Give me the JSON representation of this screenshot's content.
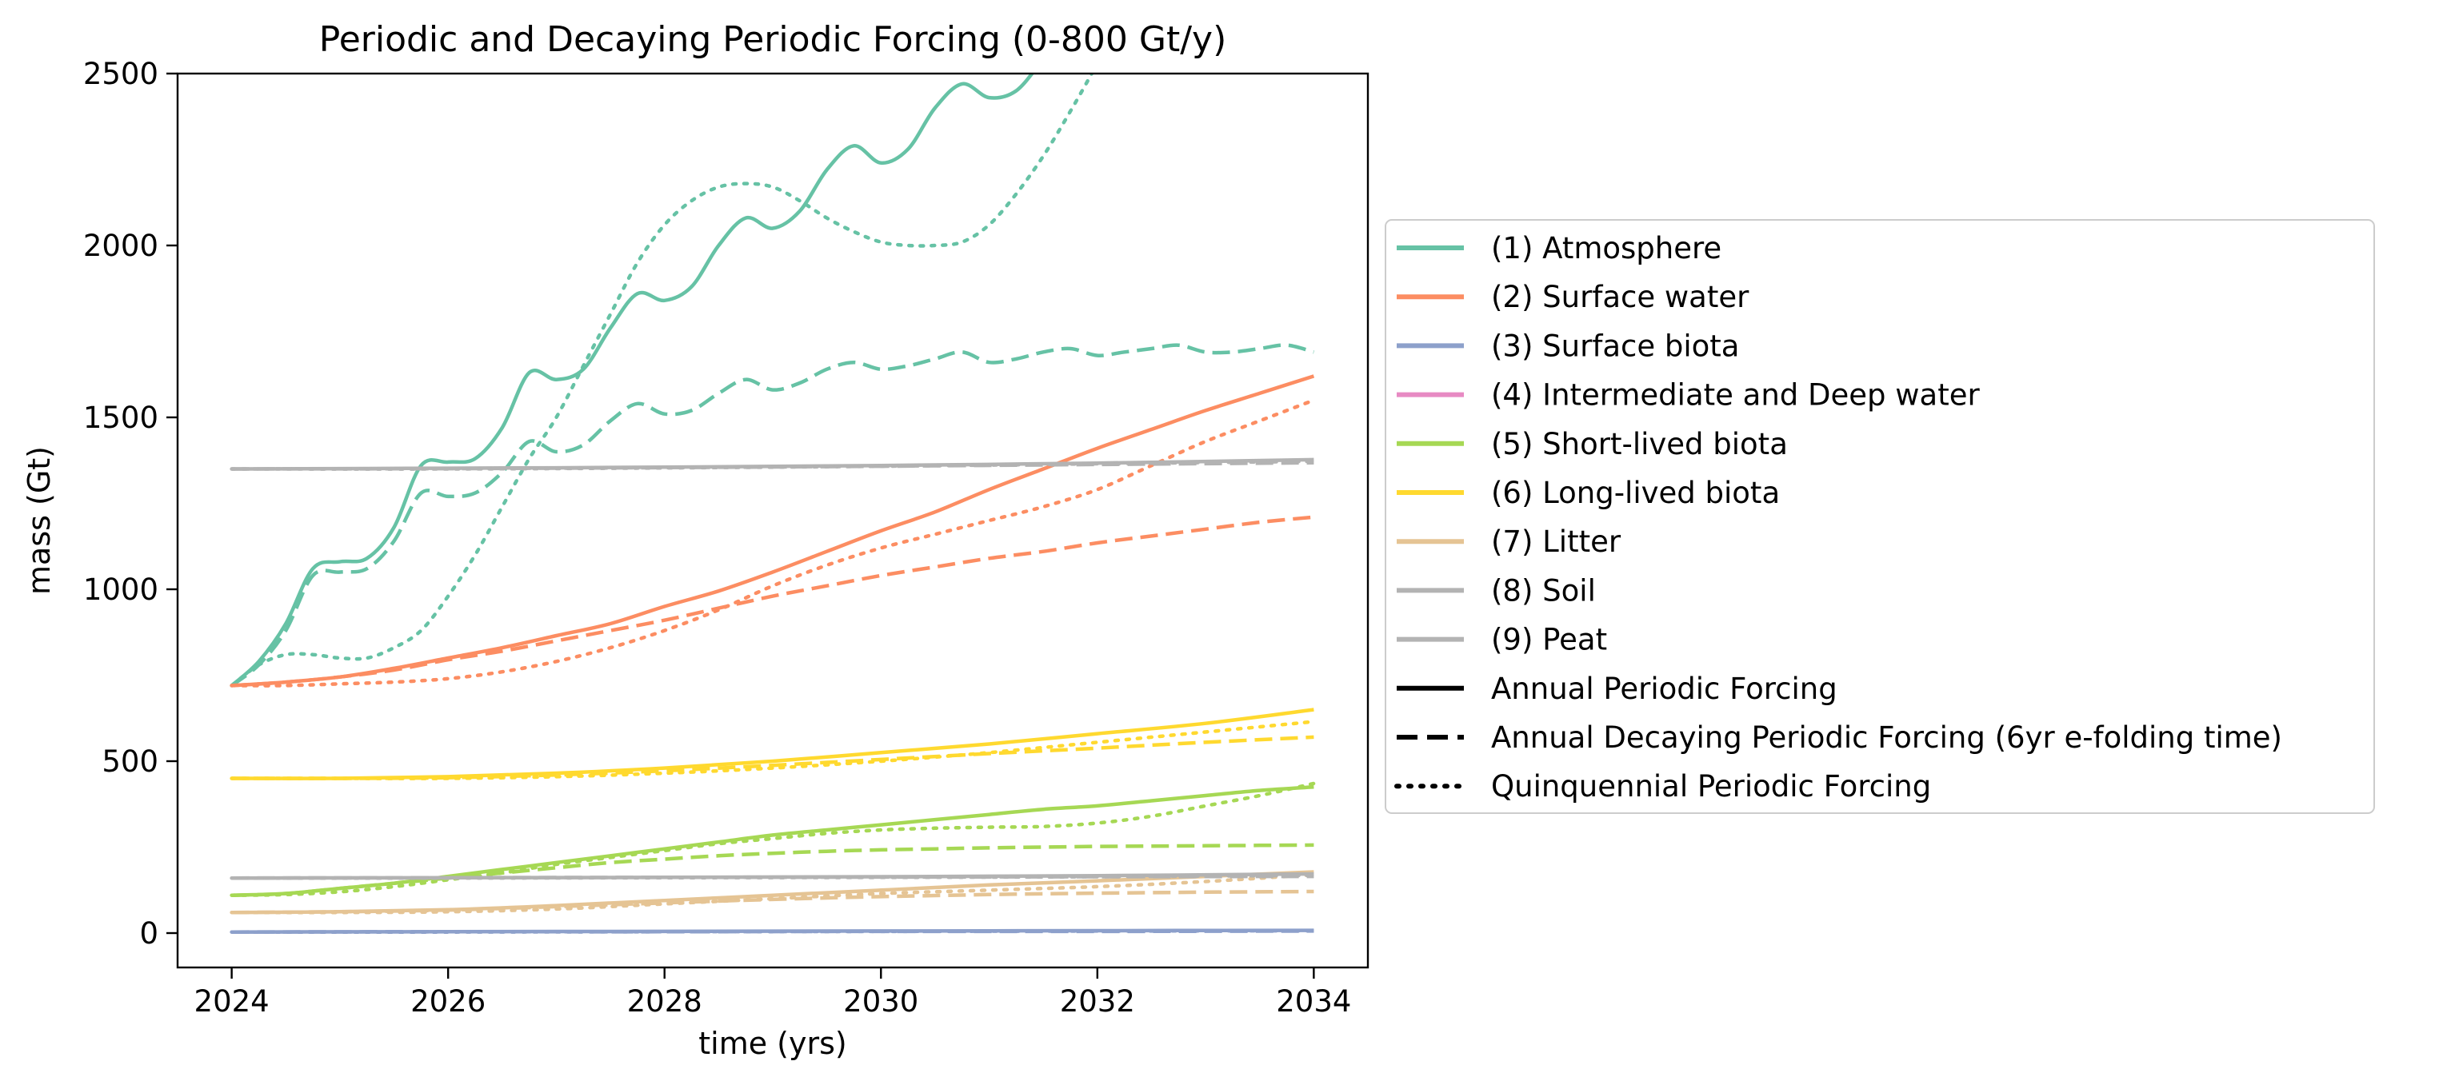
{
  "chart_data": {
    "type": "line",
    "title": "Periodic and Decaying Periodic Forcing (0-800 Gt/y)",
    "xlabel": "time (yrs)",
    "ylabel": "mass (Gt)",
    "xlim": [
      2023.5,
      2034.5
    ],
    "ylim": [
      -100,
      2500
    ],
    "xticks": [
      2024,
      2026,
      2028,
      2030,
      2032,
      2034
    ],
    "yticks": [
      0,
      500,
      1000,
      1500,
      2000,
      2500
    ],
    "grid": false,
    "legend_position": "center-left outside",
    "legend": {
      "series": [
        {
          "label": "(1) Atmosphere",
          "color": "#66c2a5"
        },
        {
          "label": "(2) Surface water",
          "color": "#fc8d62"
        },
        {
          "label": "(3) Surface biota",
          "color": "#8da0cb"
        },
        {
          "label": "(4) Intermediate and Deep water",
          "color": "#e78ac3"
        },
        {
          "label": "(5) Short-lived biota",
          "color": "#a6d854"
        },
        {
          "label": "(6) Long-lived biota",
          "color": "#ffd92f"
        },
        {
          "label": "(7) Litter",
          "color": "#e5c494"
        },
        {
          "label": "(8) Soil",
          "color": "#b3b3b3"
        },
        {
          "label": "(9) Peat",
          "color": "#b3b3b3"
        }
      ],
      "styles": [
        {
          "label": "Annual Periodic Forcing",
          "dash": "solid"
        },
        {
          "label": "Annual Decaying Periodic Forcing (6yr e-folding time)",
          "dash": "dashed"
        },
        {
          "label": "Quinquennial Periodic Forcing",
          "dash": "dotted"
        }
      ]
    },
    "series": [
      {
        "component": 1,
        "forcing": "annual",
        "color": "#66c2a5",
        "dash": "solid",
        "x": [
          2024,
          2024.25,
          2024.5,
          2024.75,
          2025,
          2025.25,
          2025.5,
          2025.75,
          2026,
          2026.25,
          2026.5,
          2026.75,
          2027,
          2027.25,
          2027.5,
          2027.75,
          2028,
          2028.25,
          2028.5,
          2028.75,
          2029,
          2029.25,
          2029.5,
          2029.75,
          2030,
          2030.25,
          2030.5,
          2030.75,
          2031,
          2031.25,
          2031.5,
          2031.75
        ],
        "y": [
          720,
          790,
          900,
          1060,
          1080,
          1090,
          1180,
          1360,
          1370,
          1380,
          1470,
          1630,
          1610,
          1640,
          1760,
          1860,
          1840,
          1880,
          2000,
          2080,
          2050,
          2100,
          2220,
          2290,
          2240,
          2280,
          2400,
          2470,
          2430,
          2450,
          2540,
          2620
        ]
      },
      {
        "component": 1,
        "forcing": "annual decaying",
        "color": "#66c2a5",
        "dash": "dashed",
        "x": [
          2024,
          2024.25,
          2024.5,
          2024.75,
          2025,
          2025.25,
          2025.5,
          2025.75,
          2026,
          2026.25,
          2026.5,
          2026.75,
          2027,
          2027.25,
          2027.5,
          2027.75,
          2028,
          2028.25,
          2028.5,
          2028.75,
          2029,
          2029.25,
          2029.5,
          2029.75,
          2030,
          2030.25,
          2030.5,
          2030.75,
          2031,
          2031.25,
          2031.5,
          2031.75,
          2032,
          2032.25,
          2032.5,
          2032.75,
          2033,
          2033.25,
          2033.5,
          2033.75,
          2034
        ],
        "y": [
          720,
          780,
          880,
          1040,
          1050,
          1060,
          1140,
          1280,
          1270,
          1280,
          1340,
          1430,
          1400,
          1420,
          1490,
          1540,
          1510,
          1520,
          1570,
          1610,
          1580,
          1600,
          1640,
          1660,
          1640,
          1650,
          1670,
          1690,
          1660,
          1670,
          1690,
          1700,
          1680,
          1690,
          1700,
          1710,
          1690,
          1690,
          1700,
          1710,
          1690
        ]
      },
      {
        "component": 1,
        "forcing": "quinquennial",
        "color": "#66c2a5",
        "dash": "dotted",
        "x": [
          2024,
          2024.25,
          2024.5,
          2024.75,
          2025,
          2025.25,
          2025.5,
          2025.75,
          2026,
          2026.25,
          2026.5,
          2026.75,
          2027,
          2027.25,
          2027.5,
          2027.75,
          2028,
          2028.25,
          2028.5,
          2028.75,
          2029,
          2029.25,
          2029.5,
          2029.75,
          2030,
          2030.25,
          2030.5,
          2030.75,
          2031,
          2031.25,
          2031.5,
          2031.75,
          2032,
          2032.25,
          2032.5
        ],
        "y": [
          720,
          780,
          810,
          810,
          800,
          800,
          830,
          880,
          980,
          1100,
          1240,
          1380,
          1500,
          1650,
          1800,
          1950,
          2060,
          2130,
          2170,
          2180,
          2170,
          2130,
          2080,
          2040,
          2010,
          2000,
          2000,
          2010,
          2060,
          2150,
          2260,
          2390,
          2530,
          2680,
          2850
        ]
      },
      {
        "component": 2,
        "forcing": "annual",
        "color": "#fc8d62",
        "dash": "solid",
        "x": [
          2024,
          2024.5,
          2025,
          2025.5,
          2026,
          2026.5,
          2027,
          2027.5,
          2028,
          2028.5,
          2029,
          2029.5,
          2030,
          2030.5,
          2031,
          2031.5,
          2032,
          2032.5,
          2033,
          2033.5,
          2034
        ],
        "y": [
          720,
          730,
          745,
          770,
          800,
          830,
          865,
          900,
          950,
          995,
          1050,
          1110,
          1170,
          1225,
          1290,
          1350,
          1410,
          1465,
          1520,
          1570,
          1620
        ]
      },
      {
        "component": 2,
        "forcing": "annual decaying",
        "color": "#fc8d62",
        "dash": "dashed",
        "x": [
          2024,
          2024.5,
          2025,
          2025.5,
          2026,
          2026.5,
          2027,
          2027.5,
          2028,
          2028.5,
          2029,
          2029.5,
          2030,
          2030.5,
          2031,
          2031.5,
          2032,
          2032.5,
          2033,
          2033.5,
          2034
        ],
        "y": [
          720,
          730,
          745,
          765,
          795,
          820,
          850,
          880,
          910,
          945,
          980,
          1010,
          1040,
          1065,
          1090,
          1110,
          1135,
          1155,
          1175,
          1195,
          1210
        ]
      },
      {
        "component": 2,
        "forcing": "quinquennial",
        "color": "#fc8d62",
        "dash": "dotted",
        "x": [
          2024,
          2024.5,
          2025,
          2025.5,
          2026,
          2026.5,
          2027,
          2027.5,
          2028,
          2028.5,
          2029,
          2029.5,
          2030,
          2030.5,
          2031,
          2031.5,
          2032,
          2032.5,
          2033,
          2033.5,
          2034
        ],
        "y": [
          720,
          720,
          725,
          730,
          740,
          760,
          790,
          830,
          880,
          940,
          1010,
          1070,
          1120,
          1160,
          1200,
          1240,
          1290,
          1360,
          1430,
          1490,
          1550
        ]
      },
      {
        "component": 3,
        "forcing": "annual",
        "color": "#8da0cb",
        "dash": "solid",
        "x": [
          2024,
          2026,
          2028,
          2030,
          2032,
          2034
        ],
        "y": [
          3,
          4,
          5,
          6,
          7,
          8
        ]
      },
      {
        "component": 3,
        "forcing": "annual decaying",
        "color": "#8da0cb",
        "dash": "dashed",
        "x": [
          2024,
          2026,
          2028,
          2030,
          2032,
          2034
        ],
        "y": [
          3,
          4,
          4,
          5,
          5,
          6
        ]
      },
      {
        "component": 3,
        "forcing": "quinquennial",
        "color": "#8da0cb",
        "dash": "dotted",
        "x": [
          2024,
          2026,
          2028,
          2030,
          2032,
          2034
        ],
        "y": [
          3,
          3,
          4,
          5,
          6,
          7
        ]
      },
      {
        "component": 5,
        "forcing": "annual",
        "color": "#a6d854",
        "dash": "solid",
        "x": [
          2024,
          2024.5,
          2025,
          2025.5,
          2026,
          2026.5,
          2027,
          2027.5,
          2028,
          2028.5,
          2029,
          2029.5,
          2030,
          2030.5,
          2031,
          2031.5,
          2032,
          2032.5,
          2033,
          2033.5,
          2034
        ],
        "y": [
          110,
          115,
          130,
          145,
          165,
          185,
          205,
          225,
          245,
          265,
          285,
          300,
          315,
          330,
          345,
          360,
          370,
          385,
          400,
          415,
          425
        ]
      },
      {
        "component": 5,
        "forcing": "annual decaying",
        "color": "#a6d854",
        "dash": "dashed",
        "x": [
          2024,
          2024.5,
          2025,
          2025.5,
          2026,
          2026.5,
          2027,
          2027.5,
          2028,
          2028.5,
          2029,
          2029.5,
          2030,
          2030.5,
          2031,
          2031.5,
          2032,
          2032.5,
          2033,
          2033.5,
          2034
        ],
        "y": [
          110,
          115,
          130,
          145,
          160,
          175,
          190,
          205,
          215,
          225,
          232,
          238,
          242,
          245,
          248,
          250,
          252,
          253,
          254,
          255,
          256
        ]
      },
      {
        "component": 5,
        "forcing": "quinquennial",
        "color": "#a6d854",
        "dash": "dotted",
        "x": [
          2024,
          2024.5,
          2025,
          2025.5,
          2026,
          2026.5,
          2027,
          2027.5,
          2028,
          2028.5,
          2029,
          2029.5,
          2030,
          2030.5,
          2031,
          2031.5,
          2032,
          2032.5,
          2033,
          2033.5,
          2034
        ],
        "y": [
          110,
          112,
          120,
          135,
          155,
          175,
          200,
          220,
          240,
          260,
          275,
          290,
          300,
          305,
          308,
          310,
          320,
          340,
          370,
          400,
          435
        ]
      },
      {
        "component": 6,
        "forcing": "annual",
        "color": "#ffd92f",
        "dash": "solid",
        "x": [
          2024,
          2025,
          2026,
          2027,
          2028,
          2029,
          2030,
          2031,
          2032,
          2033,
          2034
        ],
        "y": [
          450,
          450,
          455,
          465,
          480,
          500,
          525,
          550,
          580,
          610,
          650
        ]
      },
      {
        "component": 6,
        "forcing": "annual decaying",
        "color": "#ffd92f",
        "dash": "dashed",
        "x": [
          2024,
          2025,
          2026,
          2027,
          2028,
          2029,
          2030,
          2031,
          2032,
          2033,
          2034
        ],
        "y": [
          450,
          450,
          452,
          460,
          472,
          488,
          505,
          522,
          538,
          555,
          570
        ]
      },
      {
        "component": 6,
        "forcing": "quinquennial",
        "color": "#ffd92f",
        "dash": "dotted",
        "x": [
          2024,
          2025,
          2026,
          2027,
          2028,
          2029,
          2030,
          2031,
          2032,
          2033,
          2034
        ],
        "y": [
          450,
          450,
          450,
          455,
          465,
          480,
          500,
          525,
          555,
          585,
          615
        ]
      },
      {
        "component": 7,
        "forcing": "annual",
        "color": "#e5c494",
        "dash": "solid",
        "x": [
          2024,
          2025,
          2026,
          2027,
          2028,
          2029,
          2030,
          2031,
          2032,
          2033,
          2034
        ],
        "y": [
          60,
          62,
          68,
          80,
          95,
          110,
          125,
          140,
          152,
          165,
          178
        ]
      },
      {
        "component": 7,
        "forcing": "annual decaying",
        "color": "#e5c494",
        "dash": "dashed",
        "x": [
          2024,
          2025,
          2026,
          2027,
          2028,
          2029,
          2030,
          2031,
          2032,
          2033,
          2034
        ],
        "y": [
          60,
          62,
          67,
          77,
          88,
          98,
          106,
          112,
          116,
          119,
          121
        ]
      },
      {
        "component": 7,
        "forcing": "quinquennial",
        "color": "#e5c494",
        "dash": "dotted",
        "x": [
          2024,
          2025,
          2026,
          2027,
          2028,
          2029,
          2030,
          2031,
          2032,
          2033,
          2034
        ],
        "y": [
          60,
          60,
          62,
          70,
          85,
          100,
          115,
          125,
          135,
          150,
          170
        ]
      },
      {
        "component": 8,
        "forcing": "annual",
        "color": "#b3b3b3",
        "dash": "solid",
        "x": [
          2024,
          2026,
          2028,
          2030,
          2032,
          2034
        ],
        "y": [
          160,
          161,
          162,
          164,
          167,
          172
        ]
      },
      {
        "component": 8,
        "forcing": "annual decaying",
        "color": "#b3b3b3",
        "dash": "dashed",
        "x": [
          2024,
          2026,
          2028,
          2030,
          2032,
          2034
        ],
        "y": [
          160,
          161,
          162,
          163,
          164,
          165
        ]
      },
      {
        "component": 8,
        "forcing": "quinquennial",
        "color": "#b3b3b3",
        "dash": "dotted",
        "x": [
          2024,
          2026,
          2028,
          2030,
          2032,
          2034
        ],
        "y": [
          160,
          160,
          161,
          162,
          164,
          168
        ]
      },
      {
        "component": 9,
        "forcing": "annual",
        "color": "#b3b3b3",
        "dash": "solid",
        "x": [
          2024,
          2026,
          2028,
          2030,
          2032,
          2034
        ],
        "y": [
          1350,
          1352,
          1355,
          1360,
          1367,
          1377
        ]
      },
      {
        "component": 9,
        "forcing": "annual decaying",
        "color": "#b3b3b3",
        "dash": "dashed",
        "x": [
          2024,
          2026,
          2028,
          2030,
          2032,
          2034
        ],
        "y": [
          1350,
          1351,
          1354,
          1358,
          1363,
          1368
        ]
      },
      {
        "component": 9,
        "forcing": "quinquennial",
        "color": "#b3b3b3",
        "dash": "dotted",
        "x": [
          2024,
          2026,
          2028,
          2030,
          2032,
          2034
        ],
        "y": [
          1350,
          1350,
          1353,
          1358,
          1365,
          1372
        ]
      }
    ]
  }
}
